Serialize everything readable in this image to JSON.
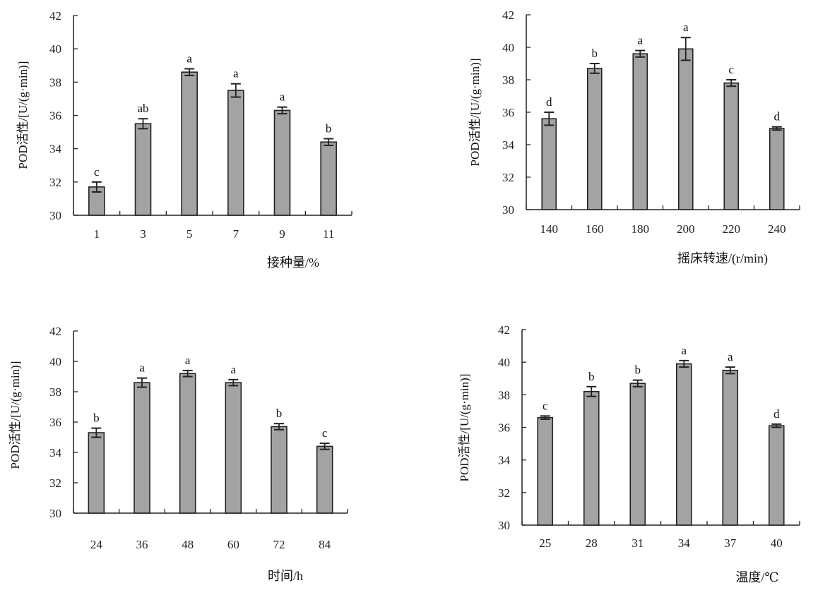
{
  "chart_data": [
    {
      "type": "bar",
      "ylabel": "POD活性/[U/(g·min)]",
      "xlabel": "接种量/%",
      "ylim": [
        30,
        42
      ],
      "yticks": [
        30,
        32,
        34,
        36,
        38,
        40,
        42
      ],
      "categories": [
        "1",
        "3",
        "5",
        "7",
        "9",
        "11"
      ],
      "values": [
        31.7,
        35.5,
        38.6,
        37.5,
        36.3,
        34.4
      ],
      "errors": [
        0.3,
        0.3,
        0.2,
        0.4,
        0.2,
        0.2
      ],
      "letters": [
        "c",
        "ab",
        "a",
        "a",
        "a",
        "b"
      ],
      "bar_color": "#a3a3a3",
      "grid": false
    },
    {
      "type": "bar",
      "ylabel": "POD活性/[U/(g·min)]",
      "xlabel": "摇床转速/(r/min)",
      "ylim": [
        30,
        42
      ],
      "yticks": [
        30,
        32,
        34,
        36,
        38,
        40,
        42
      ],
      "categories": [
        "140",
        "160",
        "180",
        "200",
        "220",
        "240"
      ],
      "values": [
        35.6,
        38.7,
        39.6,
        39.9,
        37.8,
        35.0
      ],
      "errors": [
        0.4,
        0.3,
        0.2,
        0.7,
        0.2,
        0.1
      ],
      "letters": [
        "d",
        "b",
        "a",
        "a",
        "c",
        "d"
      ],
      "bar_color": "#a3a3a3",
      "grid": false
    },
    {
      "type": "bar",
      "ylabel": "POD活性/[U/(g·min)]",
      "xlabel": "时间/h",
      "ylim": [
        30,
        42
      ],
      "yticks": [
        30,
        32,
        34,
        36,
        38,
        40,
        42
      ],
      "categories": [
        "24",
        "36",
        "48",
        "60",
        "72",
        "84"
      ],
      "values": [
        35.3,
        38.6,
        39.2,
        38.6,
        35.7,
        34.4
      ],
      "errors": [
        0.3,
        0.3,
        0.2,
        0.2,
        0.2,
        0.2
      ],
      "letters": [
        "b",
        "a",
        "a",
        "a",
        "b",
        "c"
      ],
      "bar_color": "#a3a3a3",
      "grid": false
    },
    {
      "type": "bar",
      "ylabel": "POD活性/[U/(g·min)]",
      "xlabel": "温度/℃",
      "ylim": [
        30,
        42
      ],
      "yticks": [
        30,
        32,
        34,
        36,
        38,
        40,
        42
      ],
      "categories": [
        "25",
        "28",
        "31",
        "34",
        "37",
        "40"
      ],
      "values": [
        36.6,
        38.2,
        38.7,
        39.9,
        39.5,
        36.1
      ],
      "errors": [
        0.1,
        0.3,
        0.2,
        0.2,
        0.2,
        0.1
      ],
      "letters": [
        "c",
        "b",
        "b",
        "a",
        "a",
        "d"
      ],
      "bar_color": "#a3a3a3",
      "grid": false
    }
  ]
}
